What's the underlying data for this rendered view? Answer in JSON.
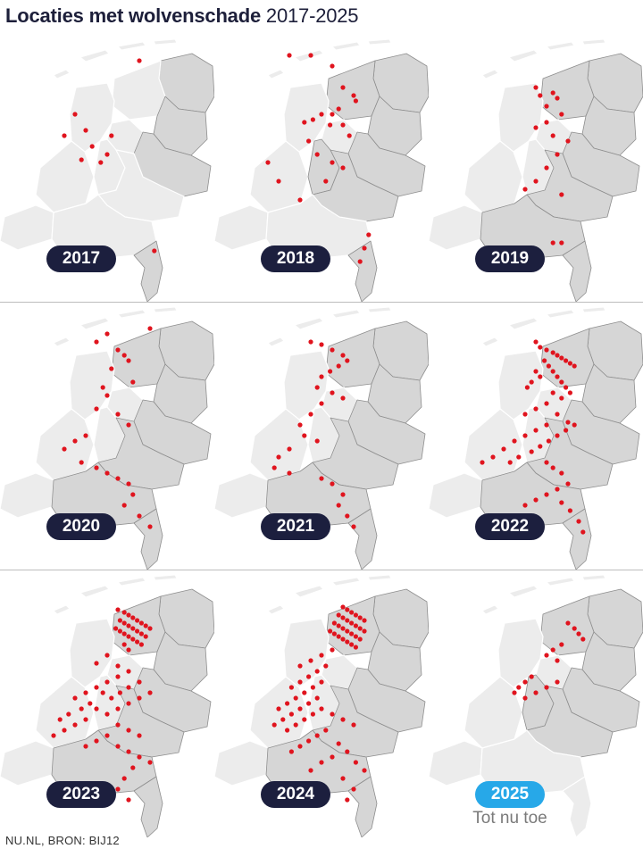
{
  "header": {
    "title": "Locaties met wolvenschade",
    "years": "2017-2025"
  },
  "source": "NU.NL, BRON: BIJ12",
  "colors": {
    "dot": "#e0141e",
    "province_active": "#d6d6d6",
    "province_inactive": "#ececec",
    "province_border": "#8e8e8e",
    "pill": "#1c1f3e",
    "pill_current": "#27a8e8"
  },
  "panels": [
    {
      "year": "2017",
      "note": "",
      "current": false,
      "active": [
        "groningen",
        "drenthe",
        "overijssel",
        "limburg"
      ],
      "dots": [
        [
          0.65,
          0.1
        ],
        [
          0.35,
          0.3
        ],
        [
          0.4,
          0.36
        ],
        [
          0.3,
          0.38
        ],
        [
          0.43,
          0.42
        ],
        [
          0.52,
          0.38
        ],
        [
          0.5,
          0.45
        ],
        [
          0.47,
          0.48
        ],
        [
          0.38,
          0.47
        ],
        [
          0.72,
          0.81
        ]
      ]
    },
    {
      "year": "2018",
      "note": "",
      "current": false,
      "active": [
        "groningen",
        "friesland",
        "drenthe",
        "overijssel",
        "gelderland",
        "utrecht",
        "limburg"
      ],
      "dots": [
        [
          0.35,
          0.08
        ],
        [
          0.45,
          0.08
        ],
        [
          0.55,
          0.12
        ],
        [
          0.6,
          0.2
        ],
        [
          0.65,
          0.23
        ],
        [
          0.66,
          0.25
        ],
        [
          0.58,
          0.28
        ],
        [
          0.55,
          0.3
        ],
        [
          0.5,
          0.3
        ],
        [
          0.46,
          0.32
        ],
        [
          0.42,
          0.33
        ],
        [
          0.54,
          0.34
        ],
        [
          0.6,
          0.34
        ],
        [
          0.63,
          0.38
        ],
        [
          0.44,
          0.4
        ],
        [
          0.48,
          0.45
        ],
        [
          0.55,
          0.48
        ],
        [
          0.6,
          0.5
        ],
        [
          0.52,
          0.55
        ],
        [
          0.25,
          0.48
        ],
        [
          0.3,
          0.55
        ],
        [
          0.4,
          0.62
        ],
        [
          0.72,
          0.75
        ],
        [
          0.7,
          0.8
        ],
        [
          0.68,
          0.85
        ]
      ]
    },
    {
      "year": "2019",
      "note": "",
      "current": false,
      "active": [
        "groningen",
        "friesland",
        "drenthe",
        "overijssel",
        "gelderland",
        "noord-brabant",
        "limburg"
      ],
      "dots": [
        [
          0.5,
          0.2
        ],
        [
          0.52,
          0.23
        ],
        [
          0.58,
          0.22
        ],
        [
          0.6,
          0.24
        ],
        [
          0.55,
          0.27
        ],
        [
          0.62,
          0.3
        ],
        [
          0.55,
          0.33
        ],
        [
          0.5,
          0.35
        ],
        [
          0.58,
          0.38
        ],
        [
          0.65,
          0.4
        ],
        [
          0.6,
          0.45
        ],
        [
          0.55,
          0.5
        ],
        [
          0.5,
          0.55
        ],
        [
          0.45,
          0.58
        ],
        [
          0.62,
          0.6
        ],
        [
          0.58,
          0.78
        ],
        [
          0.62,
          0.78
        ]
      ]
    },
    {
      "year": "2020",
      "note": "",
      "current": false,
      "active": [
        "groningen",
        "friesland",
        "drenthe",
        "overijssel",
        "gelderland",
        "noord-brabant",
        "limburg"
      ],
      "dots": [
        [
          0.7,
          0.1
        ],
        [
          0.5,
          0.12
        ],
        [
          0.45,
          0.15
        ],
        [
          0.55,
          0.18
        ],
        [
          0.58,
          0.2
        ],
        [
          0.6,
          0.22
        ],
        [
          0.52,
          0.25
        ],
        [
          0.62,
          0.3
        ],
        [
          0.48,
          0.32
        ],
        [
          0.5,
          0.35
        ],
        [
          0.45,
          0.4
        ],
        [
          0.55,
          0.42
        ],
        [
          0.6,
          0.46
        ],
        [
          0.4,
          0.5
        ],
        [
          0.35,
          0.52
        ],
        [
          0.3,
          0.55
        ],
        [
          0.38,
          0.6
        ],
        [
          0.45,
          0.62
        ],
        [
          0.5,
          0.64
        ],
        [
          0.55,
          0.66
        ],
        [
          0.6,
          0.68
        ],
        [
          0.62,
          0.72
        ],
        [
          0.58,
          0.76
        ],
        [
          0.65,
          0.8
        ],
        [
          0.7,
          0.84
        ]
      ]
    },
    {
      "year": "2021",
      "note": "",
      "current": false,
      "active": [
        "groningen",
        "friesland",
        "drenthe",
        "overijssel",
        "gelderland",
        "noord-brabant",
        "limburg"
      ],
      "dots": [
        [
          0.45,
          0.15
        ],
        [
          0.5,
          0.16
        ],
        [
          0.55,
          0.18
        ],
        [
          0.6,
          0.2
        ],
        [
          0.62,
          0.22
        ],
        [
          0.58,
          0.24
        ],
        [
          0.54,
          0.26
        ],
        [
          0.5,
          0.28
        ],
        [
          0.48,
          0.32
        ],
        [
          0.55,
          0.34
        ],
        [
          0.6,
          0.36
        ],
        [
          0.5,
          0.38
        ],
        [
          0.45,
          0.42
        ],
        [
          0.4,
          0.46
        ],
        [
          0.42,
          0.5
        ],
        [
          0.48,
          0.52
        ],
        [
          0.35,
          0.55
        ],
        [
          0.3,
          0.58
        ],
        [
          0.28,
          0.62
        ],
        [
          0.35,
          0.64
        ],
        [
          0.5,
          0.66
        ],
        [
          0.55,
          0.68
        ],
        [
          0.6,
          0.72
        ],
        [
          0.58,
          0.76
        ],
        [
          0.62,
          0.8
        ],
        [
          0.65,
          0.84
        ]
      ]
    },
    {
      "year": "2022",
      "note": "",
      "current": false,
      "active": [
        "groningen",
        "friesland",
        "drenthe",
        "overijssel",
        "gelderland",
        "noord-brabant",
        "limburg"
      ],
      "dots": [
        [
          0.5,
          0.15
        ],
        [
          0.52,
          0.17
        ],
        [
          0.55,
          0.18
        ],
        [
          0.58,
          0.19
        ],
        [
          0.6,
          0.2
        ],
        [
          0.62,
          0.21
        ],
        [
          0.64,
          0.22
        ],
        [
          0.66,
          0.23
        ],
        [
          0.68,
          0.24
        ],
        [
          0.54,
          0.22
        ],
        [
          0.56,
          0.24
        ],
        [
          0.58,
          0.26
        ],
        [
          0.6,
          0.28
        ],
        [
          0.62,
          0.3
        ],
        [
          0.64,
          0.32
        ],
        [
          0.66,
          0.34
        ],
        [
          0.5,
          0.26
        ],
        [
          0.52,
          0.28
        ],
        [
          0.48,
          0.3
        ],
        [
          0.46,
          0.32
        ],
        [
          0.58,
          0.34
        ],
        [
          0.62,
          0.36
        ],
        [
          0.55,
          0.38
        ],
        [
          0.5,
          0.4
        ],
        [
          0.45,
          0.42
        ],
        [
          0.6,
          0.42
        ],
        [
          0.65,
          0.45
        ],
        [
          0.55,
          0.46
        ],
        [
          0.5,
          0.48
        ],
        [
          0.45,
          0.5
        ],
        [
          0.4,
          0.52
        ],
        [
          0.35,
          0.55
        ],
        [
          0.3,
          0.58
        ],
        [
          0.25,
          0.6
        ],
        [
          0.38,
          0.6
        ],
        [
          0.42,
          0.58
        ],
        [
          0.48,
          0.56
        ],
        [
          0.52,
          0.54
        ],
        [
          0.56,
          0.52
        ],
        [
          0.6,
          0.5
        ],
        [
          0.64,
          0.48
        ],
        [
          0.68,
          0.46
        ],
        [
          0.55,
          0.6
        ],
        [
          0.58,
          0.62
        ],
        [
          0.62,
          0.64
        ],
        [
          0.65,
          0.68
        ],
        [
          0.6,
          0.7
        ],
        [
          0.55,
          0.72
        ],
        [
          0.5,
          0.74
        ],
        [
          0.45,
          0.76
        ],
        [
          0.62,
          0.75
        ],
        [
          0.66,
          0.78
        ],
        [
          0.7,
          0.82
        ],
        [
          0.72,
          0.86
        ]
      ]
    },
    {
      "year": "2023",
      "note": "",
      "current": false,
      "active": [
        "groningen",
        "friesland",
        "drenthe",
        "overijssel",
        "gelderland",
        "noord-brabant",
        "limburg"
      ],
      "dots": [
        [
          0.55,
          0.15
        ],
        [
          0.58,
          0.16
        ],
        [
          0.6,
          0.17
        ],
        [
          0.62,
          0.18
        ],
        [
          0.64,
          0.19
        ],
        [
          0.66,
          0.2
        ],
        [
          0.68,
          0.21
        ],
        [
          0.7,
          0.22
        ],
        [
          0.56,
          0.19
        ],
        [
          0.58,
          0.2
        ],
        [
          0.6,
          0.21
        ],
        [
          0.62,
          0.22
        ],
        [
          0.64,
          0.23
        ],
        [
          0.66,
          0.24
        ],
        [
          0.68,
          0.25
        ],
        [
          0.54,
          0.22
        ],
        [
          0.56,
          0.23
        ],
        [
          0.58,
          0.24
        ],
        [
          0.6,
          0.25
        ],
        [
          0.62,
          0.26
        ],
        [
          0.64,
          0.27
        ],
        [
          0.66,
          0.28
        ],
        [
          0.58,
          0.28
        ],
        [
          0.6,
          0.3
        ],
        [
          0.5,
          0.32
        ],
        [
          0.45,
          0.35
        ],
        [
          0.55,
          0.36
        ],
        [
          0.6,
          0.38
        ],
        [
          0.55,
          0.4
        ],
        [
          0.5,
          0.42
        ],
        [
          0.45,
          0.44
        ],
        [
          0.4,
          0.46
        ],
        [
          0.35,
          0.48
        ],
        [
          0.48,
          0.46
        ],
        [
          0.52,
          0.48
        ],
        [
          0.56,
          0.46
        ],
        [
          0.6,
          0.44
        ],
        [
          0.65,
          0.42
        ],
        [
          0.42,
          0.5
        ],
        [
          0.38,
          0.52
        ],
        [
          0.32,
          0.54
        ],
        [
          0.28,
          0.56
        ],
        [
          0.45,
          0.52
        ],
        [
          0.5,
          0.54
        ],
        [
          0.55,
          0.52
        ],
        [
          0.6,
          0.5
        ],
        [
          0.65,
          0.48
        ],
        [
          0.7,
          0.46
        ],
        [
          0.4,
          0.56
        ],
        [
          0.35,
          0.58
        ],
        [
          0.3,
          0.6
        ],
        [
          0.25,
          0.62
        ],
        [
          0.55,
          0.58
        ],
        [
          0.6,
          0.6
        ],
        [
          0.65,
          0.62
        ],
        [
          0.5,
          0.62
        ],
        [
          0.45,
          0.64
        ],
        [
          0.4,
          0.66
        ],
        [
          0.55,
          0.66
        ],
        [
          0.6,
          0.68
        ],
        [
          0.65,
          0.7
        ],
        [
          0.7,
          0.72
        ],
        [
          0.62,
          0.74
        ],
        [
          0.58,
          0.78
        ],
        [
          0.55,
          0.82
        ],
        [
          0.6,
          0.86
        ]
      ]
    },
    {
      "year": "2024",
      "note": "",
      "current": false,
      "active": [
        "groningen",
        "friesland",
        "drenthe",
        "overijssel",
        "gelderland",
        "noord-brabant",
        "limburg"
      ],
      "dots": [
        [
          0.6,
          0.14
        ],
        [
          0.62,
          0.15
        ],
        [
          0.64,
          0.16
        ],
        [
          0.66,
          0.17
        ],
        [
          0.68,
          0.18
        ],
        [
          0.7,
          0.19
        ],
        [
          0.58,
          0.17
        ],
        [
          0.6,
          0.18
        ],
        [
          0.62,
          0.19
        ],
        [
          0.64,
          0.2
        ],
        [
          0.66,
          0.21
        ],
        [
          0.68,
          0.22
        ],
        [
          0.7,
          0.23
        ],
        [
          0.56,
          0.2
        ],
        [
          0.58,
          0.21
        ],
        [
          0.6,
          0.22
        ],
        [
          0.62,
          0.23
        ],
        [
          0.64,
          0.24
        ],
        [
          0.66,
          0.25
        ],
        [
          0.68,
          0.26
        ],
        [
          0.54,
          0.23
        ],
        [
          0.56,
          0.24
        ],
        [
          0.58,
          0.25
        ],
        [
          0.6,
          0.26
        ],
        [
          0.62,
          0.27
        ],
        [
          0.64,
          0.28
        ],
        [
          0.66,
          0.29
        ],
        [
          0.55,
          0.3
        ],
        [
          0.5,
          0.32
        ],
        [
          0.45,
          0.34
        ],
        [
          0.4,
          0.36
        ],
        [
          0.52,
          0.36
        ],
        [
          0.48,
          0.38
        ],
        [
          0.44,
          0.4
        ],
        [
          0.4,
          0.42
        ],
        [
          0.36,
          0.44
        ],
        [
          0.5,
          0.42
        ],
        [
          0.46,
          0.44
        ],
        [
          0.42,
          0.46
        ],
        [
          0.38,
          0.48
        ],
        [
          0.34,
          0.5
        ],
        [
          0.3,
          0.52
        ],
        [
          0.48,
          0.48
        ],
        [
          0.44,
          0.5
        ],
        [
          0.4,
          0.52
        ],
        [
          0.36,
          0.54
        ],
        [
          0.32,
          0.56
        ],
        [
          0.28,
          0.58
        ],
        [
          0.5,
          0.52
        ],
        [
          0.46,
          0.54
        ],
        [
          0.42,
          0.56
        ],
        [
          0.38,
          0.58
        ],
        [
          0.34,
          0.6
        ],
        [
          0.55,
          0.54
        ],
        [
          0.6,
          0.56
        ],
        [
          0.65,
          0.58
        ],
        [
          0.52,
          0.6
        ],
        [
          0.48,
          0.62
        ],
        [
          0.44,
          0.64
        ],
        [
          0.4,
          0.66
        ],
        [
          0.36,
          0.68
        ],
        [
          0.58,
          0.65
        ],
        [
          0.62,
          0.68
        ],
        [
          0.66,
          0.72
        ],
        [
          0.7,
          0.75
        ],
        [
          0.55,
          0.7
        ],
        [
          0.5,
          0.72
        ],
        [
          0.45,
          0.75
        ],
        [
          0.6,
          0.78
        ],
        [
          0.65,
          0.82
        ],
        [
          0.62,
          0.86
        ]
      ]
    },
    {
      "year": "2025",
      "note": "Tot nu toe",
      "current": true,
      "active": [
        "groningen",
        "friesland",
        "drenthe",
        "overijssel",
        "gelderland",
        "utrecht"
      ],
      "dots": [
        [
          0.65,
          0.2
        ],
        [
          0.68,
          0.22
        ],
        [
          0.7,
          0.24
        ],
        [
          0.72,
          0.26
        ],
        [
          0.62,
          0.28
        ],
        [
          0.58,
          0.3
        ],
        [
          0.55,
          0.32
        ],
        [
          0.6,
          0.34
        ],
        [
          0.48,
          0.4
        ],
        [
          0.45,
          0.42
        ],
        [
          0.42,
          0.44
        ],
        [
          0.4,
          0.46
        ],
        [
          0.45,
          0.48
        ],
        [
          0.5,
          0.46
        ],
        [
          0.55,
          0.44
        ],
        [
          0.6,
          0.42
        ]
      ]
    }
  ]
}
